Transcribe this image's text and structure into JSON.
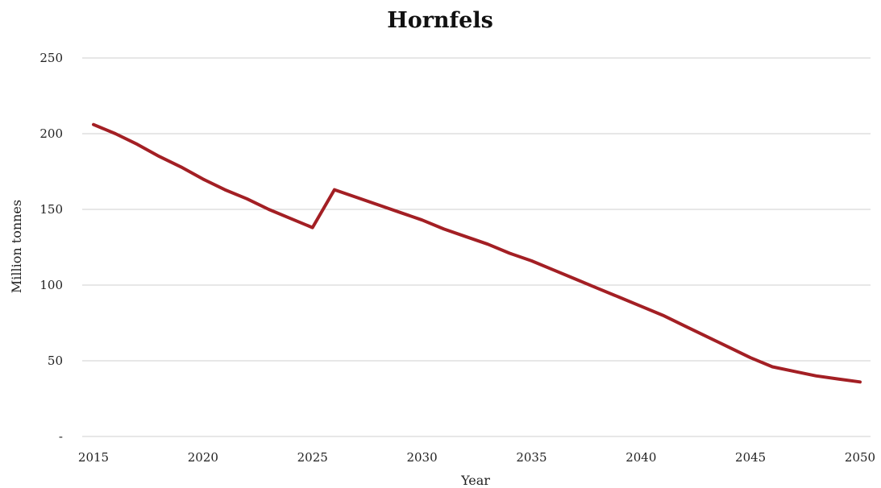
{
  "chart_data": {
    "type": "line",
    "title": "Hornfels",
    "xlabel": "Year",
    "ylabel": "Million tonnes",
    "x": [
      2015,
      2016,
      2017,
      2018,
      2019,
      2020,
      2021,
      2022,
      2023,
      2024,
      2025,
      2026,
      2027,
      2028,
      2029,
      2030,
      2031,
      2032,
      2033,
      2034,
      2035,
      2036,
      2037,
      2038,
      2039,
      2040,
      2041,
      2042,
      2043,
      2044,
      2045,
      2046,
      2047,
      2048,
      2049,
      2050
    ],
    "series": [
      {
        "values": [
          206,
          200,
          193,
          185,
          178,
          170,
          163,
          157,
          150,
          144,
          138,
          163,
          158,
          153,
          148,
          143,
          137,
          132,
          127,
          121,
          116,
          110,
          104,
          98,
          92,
          86,
          80,
          73,
          66,
          59,
          52,
          46,
          43,
          40,
          38,
          36
        ],
        "color": "#a31f24"
      }
    ],
    "xticks": [
      "2015",
      "2020",
      "2025",
      "2030",
      "2035",
      "2040",
      "2045",
      "2050"
    ],
    "yticks": [
      "-",
      "50",
      "100",
      "150",
      "200",
      "250"
    ],
    "xlim": [
      2015,
      2050
    ],
    "ylim": [
      0,
      250
    ],
    "grid": "horizontal",
    "legend": "none"
  }
}
